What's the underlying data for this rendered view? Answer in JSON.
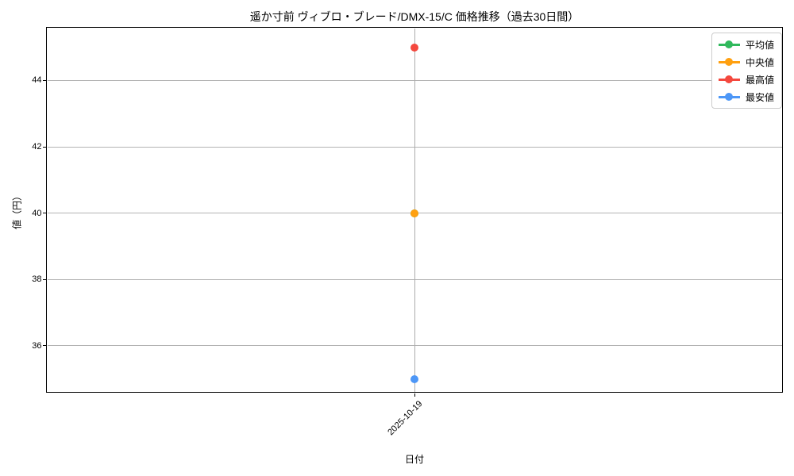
{
  "figure": {
    "background": "#ffffff",
    "plot_border_color": "#000000",
    "grid_color": "#b3b3b3",
    "tick_color": "#000000",
    "legend_border_color": "#cccccc"
  },
  "chart_data": {
    "type": "line",
    "title": "遥か寸前 ヴィブロ・ブレード/DMX-15/C 価格推移（過去30日間）",
    "xlabel": "日付",
    "ylabel": "値（円）",
    "x": [
      "2025-10-19"
    ],
    "series": [
      {
        "name": "平均値",
        "color": "#30b95c",
        "values": [
          40
        ]
      },
      {
        "name": "中央値",
        "color": "#ffa010",
        "values": [
          40
        ]
      },
      {
        "name": "最高値",
        "color": "#f4483e",
        "values": [
          45
        ]
      },
      {
        "name": "最安値",
        "color": "#4d97f7",
        "values": [
          35
        ]
      }
    ],
    "yticks": [
      36,
      38,
      40,
      42,
      44
    ],
    "ylim": [
      34.6,
      45.6
    ],
    "grid": true,
    "legend_position": "upper right"
  }
}
